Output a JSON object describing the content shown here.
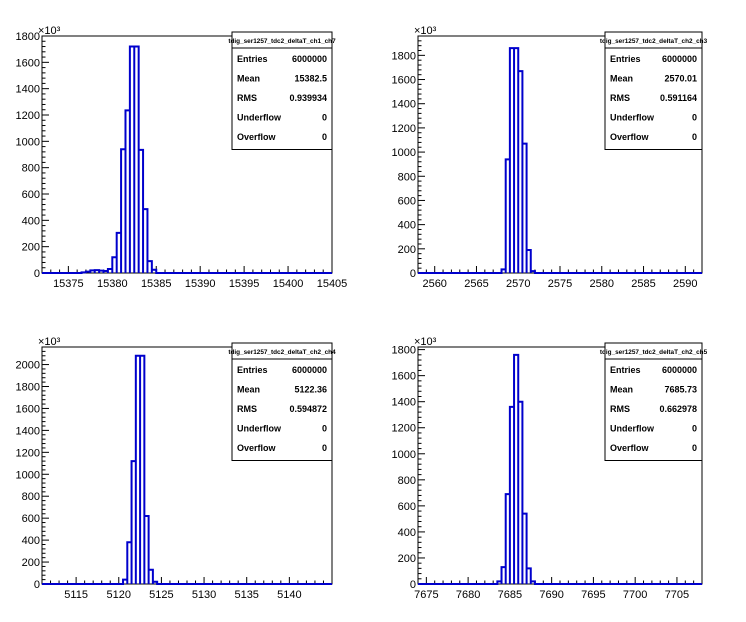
{
  "chart_data": [
    {
      "type": "bar",
      "title": "tdig_ser1257_tdc2_deltaT_ch1_ch7",
      "y_multiplier": "×10³",
      "xlim": [
        15372,
        15405
      ],
      "ylim": [
        0,
        1800
      ],
      "xticks": [
        15375,
        15380,
        15385,
        15390,
        15395,
        15400,
        15405
      ],
      "yticks": [
        0,
        200,
        400,
        600,
        800,
        1000,
        1200,
        1400,
        1600,
        1800
      ],
      "bin_width": 0.5,
      "bins": [
        [
          15376.5,
          5
        ],
        [
          15377,
          10
        ],
        [
          15377.5,
          20
        ],
        [
          15378,
          22
        ],
        [
          15378.5,
          18
        ],
        [
          15379,
          15
        ],
        [
          15379.5,
          30
        ],
        [
          15380,
          120
        ],
        [
          15380.5,
          305
        ],
        [
          15381,
          940
        ],
        [
          15381.5,
          1235
        ],
        [
          15382,
          1720
        ],
        [
          15382.5,
          1720
        ],
        [
          15383,
          935
        ],
        [
          15383.5,
          485
        ],
        [
          15384,
          90
        ],
        [
          15384.5,
          25
        ]
      ],
      "stats": [
        {
          "label": "Entries",
          "value": "6000000"
        },
        {
          "label": "Mean",
          "value": "15382.5"
        },
        {
          "label": "RMS",
          "value": "0.939934"
        },
        {
          "label": "Underflow",
          "value": "0"
        },
        {
          "label": "Overflow",
          "value": "0"
        }
      ]
    },
    {
      "type": "bar",
      "title": "tdig_ser1257_tdc2_deltaT_ch2_ch3",
      "y_multiplier": "×10³",
      "xlim": [
        2558,
        2592
      ],
      "ylim": [
        0,
        1960
      ],
      "xticks": [
        2560,
        2565,
        2570,
        2575,
        2580,
        2585,
        2590
      ],
      "yticks": [
        0,
        200,
        400,
        600,
        800,
        1000,
        1200,
        1400,
        1600,
        1800
      ],
      "bin_width": 0.5,
      "bins": [
        [
          2568,
          30
        ],
        [
          2568.5,
          940
        ],
        [
          2569,
          1860
        ],
        [
          2569.5,
          1860
        ],
        [
          2570,
          1670
        ],
        [
          2570.5,
          1070
        ],
        [
          2571,
          190
        ],
        [
          2571.5,
          15
        ]
      ],
      "stats": [
        {
          "label": "Entries",
          "value": "6000000"
        },
        {
          "label": "Mean",
          "value": "2570.01"
        },
        {
          "label": "RMS",
          "value": "0.591164"
        },
        {
          "label": "Underflow",
          "value": "0"
        },
        {
          "label": "Overflow",
          "value": "0"
        }
      ]
    },
    {
      "type": "bar",
      "title": "tdig_ser1257_tdc2_deltaT_ch2_ch4",
      "y_multiplier": "×10³",
      "xlim": [
        5111,
        5145
      ],
      "ylim": [
        0,
        2160
      ],
      "xticks": [
        5115,
        5120,
        5125,
        5130,
        5135,
        5140
      ],
      "yticks": [
        0,
        200,
        400,
        600,
        800,
        1000,
        1200,
        1400,
        1600,
        1800,
        2000
      ],
      "bin_width": 0.5,
      "bins": [
        [
          5120.5,
          40
        ],
        [
          5121,
          380
        ],
        [
          5121.5,
          1120
        ],
        [
          5122,
          2080
        ],
        [
          5122.5,
          2080
        ],
        [
          5123,
          620
        ],
        [
          5123.5,
          130
        ],
        [
          5124,
          20
        ]
      ],
      "stats": [
        {
          "label": "Entries",
          "value": "6000000"
        },
        {
          "label": "Mean",
          "value": "5122.36"
        },
        {
          "label": "RMS",
          "value": "0.594872"
        },
        {
          "label": "Underflow",
          "value": "0"
        },
        {
          "label": "Overflow",
          "value": "0"
        }
      ]
    },
    {
      "type": "bar",
      "title": "tdig_ser1257_tdc2_deltaT_ch2_ch5",
      "y_multiplier": "×10³",
      "xlim": [
        7674,
        7708
      ],
      "ylim": [
        0,
        1820
      ],
      "xticks": [
        7675,
        7680,
        7685,
        7690,
        7695,
        7700,
        7705
      ],
      "yticks": [
        0,
        200,
        400,
        600,
        800,
        1000,
        1200,
        1400,
        1600,
        1800
      ],
      "bin_width": 0.5,
      "bins": [
        [
          7683.5,
          20
        ],
        [
          7684,
          130
        ],
        [
          7684.5,
          690
        ],
        [
          7685,
          1360
        ],
        [
          7685.5,
          1760
        ],
        [
          7686,
          1400
        ],
        [
          7686.5,
          540
        ],
        [
          7687,
          120
        ],
        [
          7687.5,
          20
        ]
      ],
      "stats": [
        {
          "label": "Entries",
          "value": "6000000"
        },
        {
          "label": "Mean",
          "value": "7685.73"
        },
        {
          "label": "RMS",
          "value": "0.662978"
        },
        {
          "label": "Underflow",
          "value": "0"
        },
        {
          "label": "Overflow",
          "value": "0"
        }
      ]
    }
  ]
}
